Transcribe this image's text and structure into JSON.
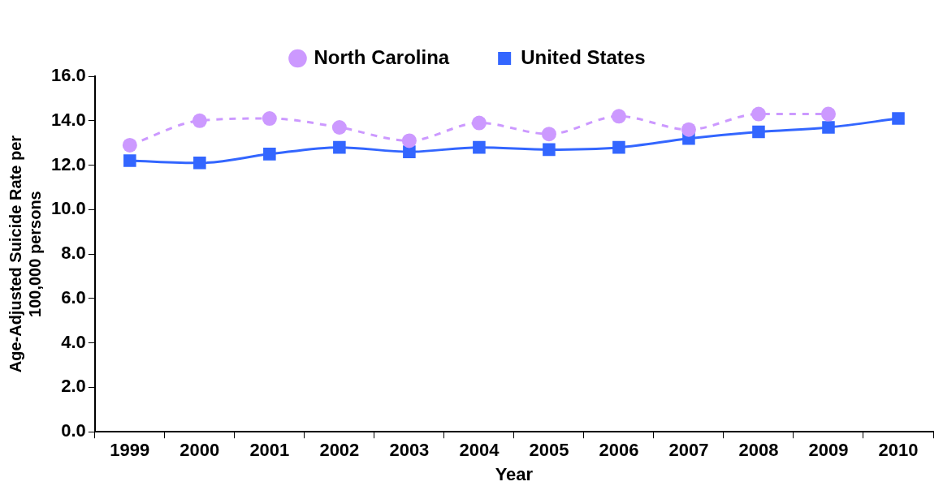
{
  "chart_data": {
    "type": "line",
    "xlabel": "Year",
    "ylabel": "Age-Adjusted Suicide Rate per 100,000 persons",
    "categories": [
      "1999",
      "2000",
      "2001",
      "2002",
      "2003",
      "2004",
      "2005",
      "2006",
      "2007",
      "2008",
      "2009",
      "2010"
    ],
    "series": [
      {
        "name": "North Carolina",
        "color": "#cc99ff",
        "marker": "circle",
        "line_style": "dashed",
        "values": [
          12.9,
          14.0,
          14.1,
          13.7,
          13.1,
          13.9,
          13.4,
          14.2,
          13.6,
          14.3,
          14.3,
          null
        ]
      },
      {
        "name": "United States",
        "color": "#3366ff",
        "marker": "square",
        "line_style": "solid",
        "values": [
          12.2,
          12.1,
          12.5,
          12.8,
          12.6,
          12.8,
          12.7,
          12.8,
          13.2,
          13.5,
          13.7,
          14.1
        ]
      }
    ],
    "ylim": [
      0,
      16
    ],
    "yticks": [
      {
        "value": 0,
        "label": "0.0"
      },
      {
        "value": 2,
        "label": "2.0"
      },
      {
        "value": 4,
        "label": "4.0"
      },
      {
        "value": 6,
        "label": "6.0"
      },
      {
        "value": 8,
        "label": "8.0"
      },
      {
        "value": 10,
        "label": "10.0"
      },
      {
        "value": 12,
        "label": "12.0"
      },
      {
        "value": 14,
        "label": "14.0"
      },
      {
        "value": 16,
        "label": "16.0"
      }
    ],
    "grid": false,
    "legend": "top"
  }
}
